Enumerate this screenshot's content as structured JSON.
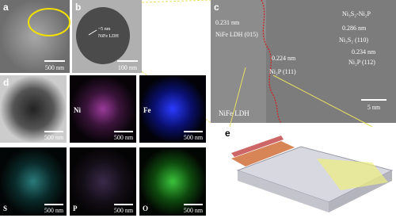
{
  "panels": [
    {
      "label": "a",
      "scale_bar": "500 nm"
    },
    {
      "label": "b",
      "scale_bar": "100 nm",
      "annotations": [
        "~5 nm",
        "NiFe LDH"
      ]
    },
    {
      "label": "c",
      "scale_bar": "5 nm",
      "annotations": [
        "0.231 nm",
        "NiFe LDH (015)",
        "Ni₃S₂-Ni₂P",
        "0.286 nm",
        "Ni₃S₂ (110)",
        "0.234 nm",
        "Ni₂P (112)",
        "0.224 nm",
        "Ni₂P (111)",
        "NiFe LDH"
      ]
    },
    {
      "label": "d",
      "maps": [
        {
          "scale_bar": "500 nm"
        },
        {
          "element": "Ni",
          "scale_bar": "500 nm"
        },
        {
          "element": "Fe",
          "scale_bar": "500 nm"
        },
        {
          "element": "S",
          "scale_bar": "500 nm"
        },
        {
          "element": "P",
          "scale_bar": "500 nm"
        },
        {
          "element": "O",
          "scale_bar": "500 nm"
        }
      ]
    },
    {
      "label": "e"
    }
  ]
}
